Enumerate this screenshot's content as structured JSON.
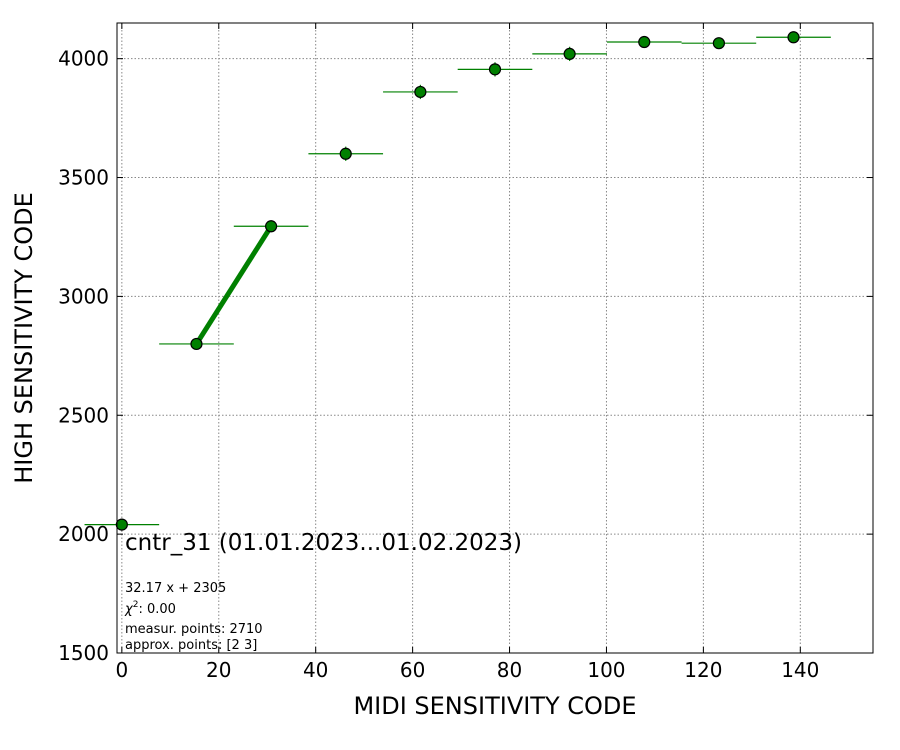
{
  "chart_data": {
    "type": "scatter",
    "xlabel": "MIDI SENSITIVITY CODE",
    "ylabel": "HIGH SENSITIVITY CODE",
    "xlim": [
      -1,
      155
    ],
    "ylim": [
      1500,
      4150
    ],
    "xticks": [
      0,
      20,
      40,
      60,
      80,
      100,
      120,
      140
    ],
    "yticks": [
      1500,
      2000,
      2500,
      3000,
      3500,
      4000
    ],
    "grid": true,
    "marker_color": "#008000",
    "series": [
      {
        "x": [
          0,
          15.4,
          30.8,
          46.2,
          61.6,
          77.0,
          92.4,
          107.8,
          123.2,
          138.6
        ],
        "y": [
          2040,
          2800,
          3295,
          3600,
          3860,
          3955,
          4020,
          4070,
          4065,
          4090
        ],
        "xerr": 7.7,
        "yerr": [
          8,
          15,
          25,
          30,
          30,
          30,
          30,
          15,
          15,
          15
        ]
      }
    ],
    "fit": {
      "x": [
        15.4,
        30.8
      ],
      "y": [
        2800,
        3295
      ],
      "color": "#008000"
    },
    "annotations": {
      "title": "cntr_31 (01.01.2023...01.02.2023)",
      "fit_eq": "32.17 x + 2305",
      "chi2_label": ": 0.00",
      "measur_points": "measur. points: 2710",
      "approx_points": "approx. points: [2 3]"
    }
  }
}
